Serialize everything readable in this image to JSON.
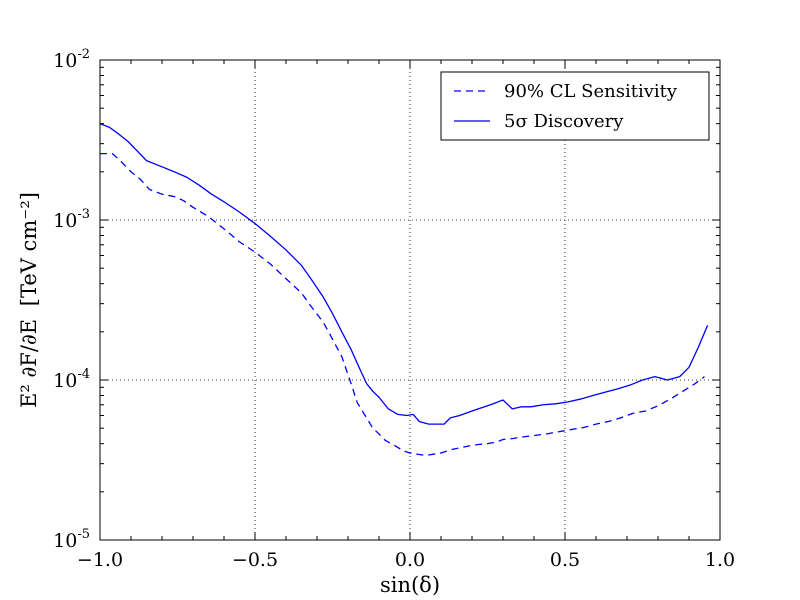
{
  "chart_data": {
    "type": "line",
    "xlabel": "sin(δ)",
    "ylabel_main": "E² ∂F/∂E",
    "ylabel_unit": "[TeV cm⁻²]",
    "xlim": [
      -1.0,
      1.0
    ],
    "ylim": [
      1e-05,
      0.01
    ],
    "yscale": "log",
    "grid": true,
    "legend_position": "top-right",
    "x_ticks": [
      {
        "value": -1.0,
        "label": "−1.0"
      },
      {
        "value": -0.5,
        "label": "−0.5"
      },
      {
        "value": 0.0,
        "label": "0.0"
      },
      {
        "value": 0.5,
        "label": "0.5"
      },
      {
        "value": 1.0,
        "label": "1.0"
      }
    ],
    "y_ticks": [
      {
        "value": 1e-05,
        "base": "10",
        "exp": "-5"
      },
      {
        "value": 0.0001,
        "base": "10",
        "exp": "-4"
      },
      {
        "value": 0.001,
        "base": "10",
        "exp": "-3"
      },
      {
        "value": 0.01,
        "base": "10",
        "exp": "-2"
      }
    ],
    "series": [
      {
        "name": "90% CL Sensitivity",
        "style": "dashed",
        "color": "#0000ff",
        "x": [
          -1.0,
          -0.96,
          -0.93,
          -0.9,
          -0.87,
          -0.84,
          -0.8,
          -0.76,
          -0.73,
          -0.7,
          -0.65,
          -0.6,
          -0.55,
          -0.5,
          -0.45,
          -0.4,
          -0.35,
          -0.32,
          -0.28,
          -0.25,
          -0.22,
          -0.19,
          -0.17,
          -0.14,
          -0.12,
          -0.1,
          -0.08,
          -0.05,
          -0.02,
          0.0,
          0.02,
          0.04,
          0.06,
          0.08,
          0.1,
          0.12,
          0.14,
          0.17,
          0.2,
          0.22,
          0.25,
          0.28,
          0.3,
          0.33,
          0.36,
          0.4,
          0.44,
          0.48,
          0.52,
          0.56,
          0.6,
          0.64,
          0.68,
          0.72,
          0.76,
          0.8,
          0.84,
          0.88,
          0.92,
          0.95
        ],
        "y": [
          0.0026,
          0.0026,
          0.0023,
          0.002,
          0.0018,
          0.00155,
          0.00145,
          0.0014,
          0.00132,
          0.0012,
          0.00105,
          0.00088,
          0.00073,
          0.00063,
          0.00053,
          0.00043,
          0.00035,
          0.00029,
          0.00023,
          0.00018,
          0.00014,
          9.5e-05,
          7.2e-05,
          5.8e-05,
          5e-05,
          4.6e-05,
          4.2e-05,
          3.9e-05,
          3.6e-05,
          3.5e-05,
          3.45e-05,
          3.4e-05,
          3.4e-05,
          3.45e-05,
          3.5e-05,
          3.6e-05,
          3.7e-05,
          3.8e-05,
          3.9e-05,
          3.95e-05,
          4e-05,
          4.1e-05,
          4.25e-05,
          4.3e-05,
          4.4e-05,
          4.5e-05,
          4.6e-05,
          4.75e-05,
          4.9e-05,
          5.05e-05,
          5.3e-05,
          5.5e-05,
          5.8e-05,
          6.2e-05,
          6.4e-05,
          6.9e-05,
          7.6e-05,
          8.5e-05,
          9.5e-05,
          0.000105
        ]
      },
      {
        "name": "5σ Discovery",
        "style": "solid",
        "color": "#0000ff",
        "x": [
          -1.0,
          -0.97,
          -0.94,
          -0.91,
          -0.88,
          -0.85,
          -0.8,
          -0.76,
          -0.72,
          -0.68,
          -0.64,
          -0.6,
          -0.55,
          -0.5,
          -0.45,
          -0.4,
          -0.35,
          -0.32,
          -0.28,
          -0.25,
          -0.22,
          -0.19,
          -0.16,
          -0.14,
          -0.12,
          -0.1,
          -0.07,
          -0.04,
          -0.01,
          0.01,
          0.03,
          0.06,
          0.09,
          0.11,
          0.13,
          0.16,
          0.19,
          0.22,
          0.26,
          0.3,
          0.33,
          0.36,
          0.39,
          0.43,
          0.47,
          0.51,
          0.55,
          0.59,
          0.63,
          0.67,
          0.71,
          0.75,
          0.79,
          0.83,
          0.87,
          0.9,
          0.93,
          0.96
        ],
        "y": [
          0.004,
          0.0038,
          0.00345,
          0.0031,
          0.0027,
          0.00235,
          0.00215,
          0.002,
          0.00185,
          0.00165,
          0.00145,
          0.0013,
          0.00112,
          0.00095,
          0.00079,
          0.00065,
          0.00052,
          0.00043,
          0.00033,
          0.00026,
          0.0002,
          0.000155,
          0.000115,
          9.5e-05,
          8.5e-05,
          7.8e-05,
          6.6e-05,
          6.1e-05,
          6e-05,
          6.1e-05,
          5.5e-05,
          5.3e-05,
          5.3e-05,
          5.3e-05,
          5.8e-05,
          6e-05,
          6.3e-05,
          6.6e-05,
          7e-05,
          7.5e-05,
          6.6e-05,
          6.8e-05,
          6.8e-05,
          7e-05,
          7.1e-05,
          7.3e-05,
          7.6e-05,
          8e-05,
          8.4e-05,
          8.8e-05,
          9.3e-05,
          0.0001,
          0.000105,
          0.0001,
          0.000105,
          0.00012,
          0.00016,
          0.00022
        ]
      }
    ]
  }
}
